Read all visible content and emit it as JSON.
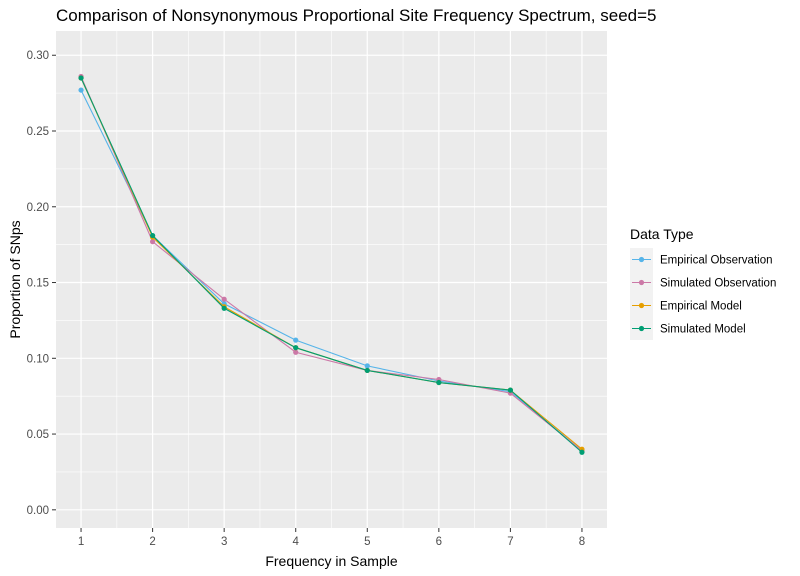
{
  "chart_data": {
    "type": "line",
    "title": "Comparison of Nonsynonymous Proportional Site Frequency Spectrum, seed=5",
    "xlabel": "Frequency in Sample",
    "ylabel": "Proportion of SNps",
    "x": [
      1,
      2,
      3,
      4,
      5,
      6,
      7,
      8
    ],
    "x_ticks": [
      "1",
      "2",
      "3",
      "4",
      "5",
      "6",
      "7",
      "8"
    ],
    "xlim": [
      0.65,
      8.35
    ],
    "y_ticks": [
      "0.00",
      "0.05",
      "0.10",
      "0.15",
      "0.20",
      "0.25",
      "0.30"
    ],
    "ylim": [
      -0.012,
      0.316
    ],
    "grid": true,
    "legend": {
      "title": "Data Type",
      "position": "right"
    },
    "series": [
      {
        "name": "Empirical Observation",
        "color": "#56B4E9",
        "values": [
          0.277,
          0.181,
          0.136,
          0.112,
          0.095,
          0.085,
          0.078,
          0.039
        ]
      },
      {
        "name": "Simulated Observation",
        "color": "#CC79A7",
        "values": [
          0.286,
          0.177,
          0.139,
          0.104,
          0.092,
          0.086,
          0.077,
          0.039
        ]
      },
      {
        "name": "Empirical Model",
        "color": "#E69F00",
        "values": [
          0.285,
          0.18,
          0.134,
          0.107,
          0.092,
          0.084,
          0.079,
          0.04
        ]
      },
      {
        "name": "Simulated Model",
        "color": "#009E73",
        "values": [
          0.285,
          0.181,
          0.133,
          0.107,
          0.092,
          0.084,
          0.079,
          0.038
        ]
      }
    ]
  }
}
